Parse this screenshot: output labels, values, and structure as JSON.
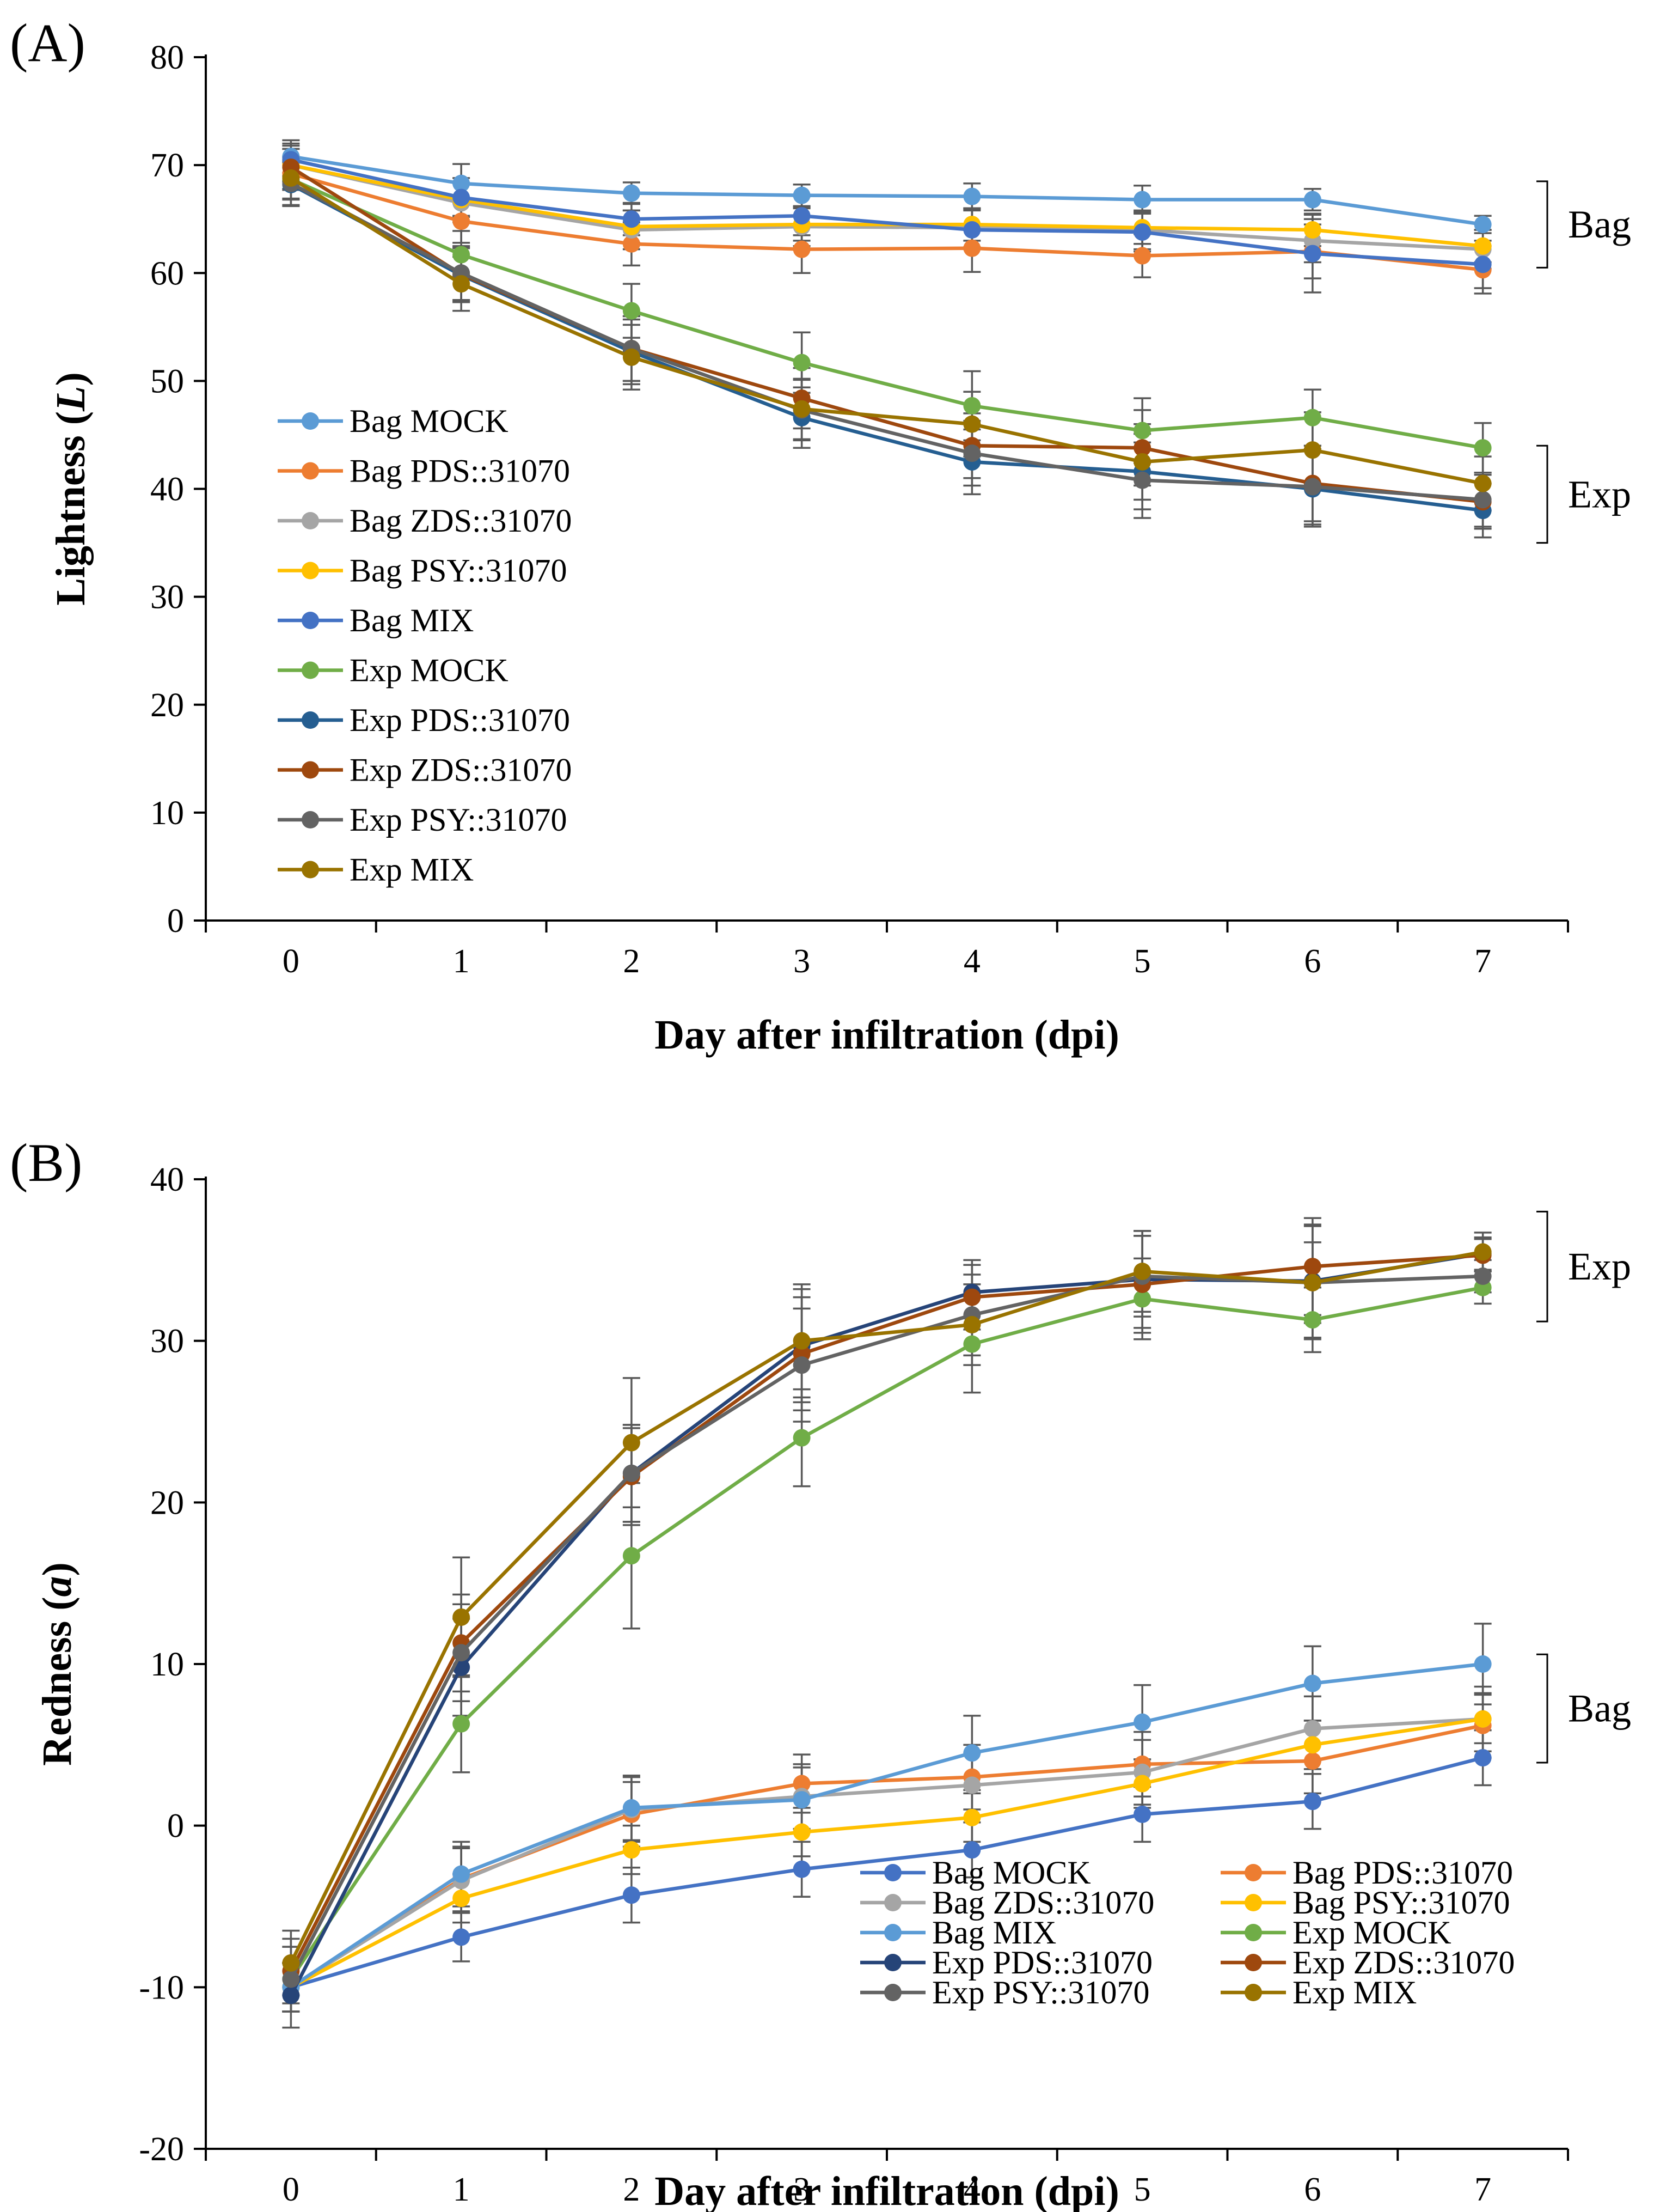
{
  "chart_data": [
    {
      "type": "line",
      "panel_label": "(A)",
      "title": "",
      "xlabel": "Day after infiltration (dpi)",
      "ylabel_prefix": "Lightness (",
      "ylabel_var": "L",
      "ylabel_suffix": ")",
      "xlim": [
        -0.5,
        7.5
      ],
      "ylim": [
        0,
        80
      ],
      "yticks": [
        0,
        10,
        20,
        30,
        40,
        50,
        60,
        70,
        80
      ],
      "xticks": [
        0,
        1,
        2,
        3,
        4,
        5,
        6,
        7
      ],
      "x": [
        0,
        1,
        2,
        3,
        4,
        5,
        6,
        7
      ],
      "legend_position": "center-left",
      "legend_columns": 1,
      "series": [
        {
          "name": "Bag MOCK",
          "color": "#5B9BD5",
          "values": [
            70.8,
            68.3,
            67.4,
            67.2,
            67.1,
            66.8,
            66.8,
            64.5
          ],
          "errors": [
            1.5,
            1.8,
            1.0,
            1.0,
            1.2,
            1.3,
            1.0,
            0.8
          ]
        },
        {
          "name": "Bag PDS::31070",
          "color": "#ED7D31",
          "values": [
            69.2,
            64.8,
            62.7,
            62.2,
            62.3,
            61.6,
            62.0,
            60.3
          ],
          "errors": [
            1.5,
            2.0,
            2.0,
            2.2,
            2.2,
            2.0,
            2.5,
            2.2
          ]
        },
        {
          "name": "Bag ZDS::31070",
          "color": "#A5A5A5",
          "values": [
            70.0,
            66.5,
            64.0,
            64.3,
            64.2,
            64.0,
            63.0,
            62.2
          ],
          "errors": [
            1.5,
            1.8,
            1.8,
            1.8,
            1.8,
            1.8,
            2.0,
            1.8
          ]
        },
        {
          "name": "Bag PSY::31070",
          "color": "#FFC000",
          "values": [
            70.0,
            66.8,
            64.3,
            64.5,
            64.5,
            64.2,
            64.0,
            62.5
          ],
          "errors": [
            1.5,
            1.5,
            1.5,
            1.5,
            1.5,
            1.5,
            1.5,
            1.5
          ]
        },
        {
          "name": "Bag MIX",
          "color": "#4472C4",
          "values": [
            70.5,
            67.0,
            65.0,
            65.3,
            64.0,
            63.8,
            61.8,
            60.8
          ],
          "errors": [
            1.5,
            1.8,
            1.5,
            1.8,
            1.8,
            1.8,
            3.6,
            2.2
          ]
        },
        {
          "name": "Exp MOCK",
          "color": "#70AD47",
          "values": [
            68.7,
            61.7,
            56.5,
            51.7,
            47.7,
            45.4,
            46.6,
            43.8
          ],
          "errors": [
            1.8,
            2.2,
            2.5,
            2.8,
            3.2,
            3.0,
            2.6,
            2.3
          ]
        },
        {
          "name": "Exp PDS::31070",
          "color": "#255E91",
          "values": [
            68.2,
            59.8,
            52.7,
            46.6,
            42.5,
            41.6,
            40.0,
            38.0
          ],
          "errors": [
            2.0,
            2.5,
            3.0,
            2.8,
            3.0,
            3.5,
            3.5,
            2.5
          ]
        },
        {
          "name": "Exp ZDS::31070",
          "color": "#9E480E",
          "values": [
            69.8,
            59.9,
            53.0,
            48.4,
            44.0,
            43.8,
            40.5,
            38.8
          ],
          "errors": [
            2.0,
            2.5,
            3.0,
            2.8,
            3.0,
            3.5,
            3.5,
            2.5
          ]
        },
        {
          "name": "Exp PSY::31070",
          "color": "#636363",
          "values": [
            68.3,
            60.0,
            53.0,
            47.3,
            43.3,
            40.8,
            40.2,
            39.0
          ],
          "errors": [
            2.0,
            2.5,
            3.0,
            2.8,
            3.0,
            3.5,
            3.5,
            2.5
          ]
        },
        {
          "name": "Exp MIX",
          "color": "#997300",
          "values": [
            68.8,
            59.0,
            52.2,
            47.4,
            46.0,
            42.5,
            43.6,
            40.5
          ],
          "errors": [
            2.0,
            2.5,
            3.0,
            2.8,
            3.0,
            3.5,
            3.5,
            2.5
          ]
        }
      ],
      "brackets": [
        {
          "label": "Bag",
          "y_top": 68.5,
          "y_bottom": 60.5
        },
        {
          "label": "Exp",
          "y_top": 44.0,
          "y_bottom": 35.0
        }
      ]
    },
    {
      "type": "line",
      "panel_label": "(B)",
      "title": "",
      "xlabel": "Day after infiltration (dpi)",
      "ylabel_prefix": "Redness (",
      "ylabel_var": "a",
      "ylabel_suffix": ")",
      "xlim": [
        -0.5,
        7.5
      ],
      "ylim": [
        -20,
        40
      ],
      "yticks": [
        -20,
        -10,
        0,
        10,
        20,
        30,
        40
      ],
      "xticks": [
        0,
        1,
        2,
        3,
        4,
        5,
        6,
        7
      ],
      "x": [
        0,
        1,
        2,
        3,
        4,
        5,
        6,
        7
      ],
      "legend_position": "bottom-right",
      "legend_columns": 2,
      "series": [
        {
          "name": "Bag MOCK",
          "color": "#4472C4",
          "values": [
            -10.0,
            -6.9,
            -4.3,
            -2.7,
            -1.5,
            0.7,
            1.5,
            4.2
          ],
          "errors": [
            1.5,
            1.5,
            1.7,
            1.7,
            1.7,
            1.7,
            1.7,
            1.7
          ]
        },
        {
          "name": "Bag PDS::31070",
          "color": "#ED7D31",
          "values": [
            -10.0,
            -3.3,
            0.7,
            2.6,
            3.0,
            3.8,
            4.0,
            6.2
          ],
          "errors": [
            1.5,
            2.0,
            2.0,
            1.8,
            2.0,
            2.0,
            2.0,
            2.0
          ]
        },
        {
          "name": "Bag ZDS::31070",
          "color": "#A5A5A5",
          "values": [
            -10.0,
            -3.4,
            1.0,
            1.8,
            2.5,
            3.3,
            6.0,
            6.6
          ],
          "errors": [
            1.5,
            2.0,
            2.0,
            2.0,
            2.0,
            2.0,
            2.0,
            2.0
          ]
        },
        {
          "name": "Bag PSY::31070",
          "color": "#FFC000",
          "values": [
            -10.0,
            -4.5,
            -1.5,
            -0.4,
            0.5,
            2.6,
            5.0,
            6.6
          ],
          "errors": [
            1.5,
            1.5,
            1.5,
            1.5,
            1.5,
            1.5,
            1.5,
            1.5
          ]
        },
        {
          "name": "Bag MIX",
          "color": "#5B9BD5",
          "values": [
            -10.0,
            -3.0,
            1.1,
            1.6,
            4.5,
            6.4,
            8.8,
            10.0
          ],
          "errors": [
            1.5,
            2.0,
            2.0,
            2.0,
            2.3,
            2.3,
            2.3,
            2.5
          ]
        },
        {
          "name": "Exp MOCK",
          "color": "#70AD47",
          "values": [
            -9.5,
            6.3,
            16.7,
            24.0,
            29.8,
            32.6,
            31.3,
            33.3
          ],
          "errors": [
            2.0,
            3.0,
            4.5,
            3.0,
            3.0,
            2.5,
            2.0,
            1.0
          ]
        },
        {
          "name": "Exp PDS::31070",
          "color": "#264478",
          "values": [
            -10.5,
            9.8,
            21.8,
            29.7,
            33.0,
            33.8,
            33.7,
            35.4
          ],
          "errors": [
            2.0,
            3.0,
            3.0,
            3.5,
            2.0,
            3.0,
            3.5,
            1.0
          ]
        },
        {
          "name": "Exp ZDS::31070",
          "color": "#9E480E",
          "values": [
            -9.0,
            11.3,
            21.6,
            29.2,
            32.7,
            33.5,
            34.6,
            35.3
          ],
          "errors": [
            2.0,
            3.0,
            3.0,
            3.5,
            2.0,
            3.0,
            3.0,
            1.0
          ]
        },
        {
          "name": "Exp PSY::31070",
          "color": "#636363",
          "values": [
            -9.5,
            10.7,
            21.8,
            28.5,
            31.6,
            34.0,
            33.6,
            34.0
          ],
          "errors": [
            2.0,
            3.0,
            3.0,
            3.5,
            2.5,
            2.5,
            2.5,
            1.0
          ]
        },
        {
          "name": "Exp MIX",
          "color": "#997300",
          "values": [
            -8.5,
            12.9,
            23.7,
            30.0,
            31.0,
            34.3,
            33.6,
            35.5
          ],
          "errors": [
            2.0,
            3.7,
            4.0,
            3.5,
            2.5,
            2.5,
            3.5,
            1.2
          ]
        }
      ],
      "brackets": [
        {
          "label": "Exp",
          "y_top": 38.0,
          "y_bottom": 31.2
        },
        {
          "label": "Bag",
          "y_top": 10.6,
          "y_bottom": 3.9
        }
      ]
    }
  ]
}
